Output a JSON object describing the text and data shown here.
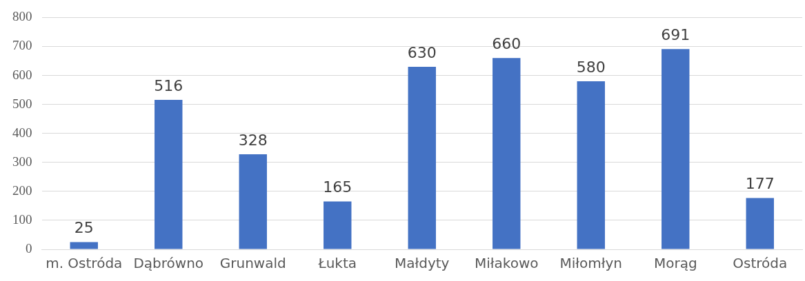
{
  "chart_data": {
    "type": "bar",
    "categories": [
      "m. Ostróda",
      "Dąbrówno",
      "Grunwald",
      "Łukta",
      "Małdyty",
      "Miłakowo",
      "Miłomłyn",
      "Morąg",
      "Ostróda"
    ],
    "values": [
      25,
      516,
      328,
      165,
      630,
      660,
      580,
      691,
      177
    ],
    "color": "#4472c4",
    "ylim": [
      0,
      800
    ],
    "yticks": [
      0,
      100,
      200,
      300,
      400,
      500,
      600,
      700,
      800
    ],
    "grid": "y",
    "data_labels": true,
    "legend": false
  }
}
